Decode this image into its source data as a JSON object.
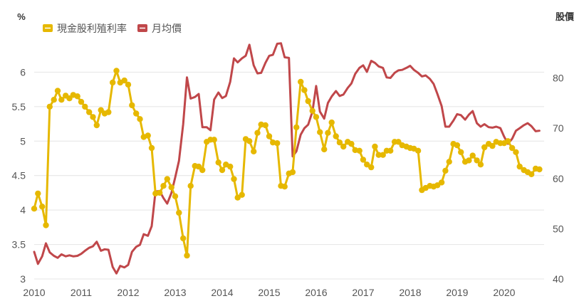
{
  "chart_data": {
    "type": "line",
    "left_axis": {
      "label": "%",
      "ylim": [
        3,
        6.5
      ],
      "ticks": [
        "3",
        "3.5",
        "4",
        "4.5",
        "5",
        "5.5",
        "6"
      ]
    },
    "right_axis": {
      "label": "股價",
      "ylim": [
        40,
        88
      ],
      "ticks": [
        "40",
        "50",
        "60",
        "70",
        "80"
      ]
    },
    "x_axis": {
      "xlim": [
        2010,
        2020.85
      ],
      "ticks": [
        "2010",
        "2011",
        "2012",
        "2013",
        "2014",
        "2015",
        "2016",
        "2017",
        "2018",
        "2019",
        "2020"
      ]
    },
    "grid": true,
    "legend_position": "top-left",
    "series": [
      {
        "name": "現金股利殖利率",
        "axis": "left",
        "color": "#e6b800",
        "markers": true,
        "x": [
          2010.0,
          2010.08,
          2010.17,
          2010.25,
          2010.33,
          2010.42,
          2010.5,
          2010.58,
          2010.67,
          2010.75,
          2010.83,
          2010.92,
          2011.0,
          2011.08,
          2011.17,
          2011.25,
          2011.33,
          2011.42,
          2011.5,
          2011.58,
          2011.67,
          2011.75,
          2011.83,
          2011.92,
          2012.0,
          2012.08,
          2012.17,
          2012.25,
          2012.33,
          2012.42,
          2012.5,
          2012.58,
          2012.67,
          2012.75,
          2012.83,
          2012.92,
          2013.0,
          2013.08,
          2013.17,
          2013.25,
          2013.33,
          2013.42,
          2013.5,
          2013.58,
          2013.67,
          2013.75,
          2013.83,
          2013.92,
          2014.0,
          2014.08,
          2014.17,
          2014.25,
          2014.33,
          2014.42,
          2014.5,
          2014.58,
          2014.67,
          2014.75,
          2014.83,
          2014.92,
          2015.0,
          2015.08,
          2015.17,
          2015.25,
          2015.33,
          2015.42,
          2015.5,
          2015.58,
          2015.67,
          2015.75,
          2015.83,
          2015.92,
          2016.0,
          2016.08,
          2016.17,
          2016.25,
          2016.33,
          2016.42,
          2016.5,
          2016.58,
          2016.67,
          2016.75,
          2016.83,
          2016.92,
          2017.0,
          2017.08,
          2017.17,
          2017.25,
          2017.33,
          2017.42,
          2017.5,
          2017.58,
          2017.67,
          2017.75,
          2017.83,
          2017.92,
          2018.0,
          2018.08,
          2018.17,
          2018.25,
          2018.33,
          2018.42,
          2018.5,
          2018.58,
          2018.67,
          2018.75,
          2018.83,
          2018.92,
          2019.0,
          2019.08,
          2019.17,
          2019.25,
          2019.33,
          2019.42,
          2019.5,
          2019.58,
          2019.67,
          2019.75,
          2019.83,
          2019.92,
          2020.0,
          2020.08,
          2020.17,
          2020.25,
          2020.33,
          2020.42,
          2020.5,
          2020.58,
          2020.67,
          2020.75
        ],
        "values": [
          4.02,
          4.24,
          4.05,
          3.78,
          5.5,
          5.6,
          5.73,
          5.6,
          5.66,
          5.62,
          5.67,
          5.65,
          5.57,
          5.5,
          5.42,
          5.35,
          5.23,
          5.45,
          5.4,
          5.42,
          5.85,
          6.02,
          5.85,
          5.88,
          5.82,
          5.52,
          5.4,
          5.32,
          5.06,
          5.08,
          4.9,
          4.24,
          4.25,
          4.35,
          4.45,
          4.33,
          4.2,
          3.96,
          3.59,
          3.34,
          4.35,
          4.64,
          4.63,
          4.58,
          4.99,
          5.02,
          5.02,
          4.69,
          4.58,
          4.66,
          4.63,
          4.45,
          4.18,
          4.22,
          5.03,
          5.0,
          4.85,
          5.12,
          5.24,
          5.23,
          5.07,
          4.98,
          4.97,
          4.35,
          4.34,
          4.53,
          4.55,
          5.2,
          5.86,
          5.74,
          5.58,
          5.44,
          5.35,
          5.13,
          4.88,
          5.12,
          5.27,
          5.07,
          4.98,
          4.92,
          4.99,
          4.96,
          4.87,
          4.86,
          4.73,
          4.66,
          4.62,
          4.92,
          4.8,
          4.8,
          4.86,
          4.86,
          4.99,
          4.99,
          4.94,
          4.92,
          4.9,
          4.89,
          4.86,
          4.29,
          4.32,
          4.35,
          4.34,
          4.36,
          4.4,
          4.57,
          4.7,
          4.96,
          4.94,
          4.84,
          4.7,
          4.72,
          4.79,
          4.72,
          4.66,
          4.91,
          4.96,
          4.93,
          4.99,
          4.97,
          4.97,
          5.0,
          4.9,
          4.84,
          4.63,
          4.58,
          4.55,
          4.52,
          4.6,
          4.59
        ]
      },
      {
        "name": "月均價",
        "axis": "right",
        "color": "#c0474a",
        "markers": false,
        "x": [
          2010.0,
          2010.08,
          2010.17,
          2010.25,
          2010.33,
          2010.42,
          2010.5,
          2010.58,
          2010.67,
          2010.75,
          2010.83,
          2010.92,
          2011.0,
          2011.08,
          2011.17,
          2011.25,
          2011.33,
          2011.42,
          2011.5,
          2011.58,
          2011.67,
          2011.75,
          2011.83,
          2011.92,
          2012.0,
          2012.08,
          2012.17,
          2012.25,
          2012.33,
          2012.42,
          2012.5,
          2012.58,
          2012.67,
          2012.75,
          2012.83,
          2012.92,
          2013.0,
          2013.08,
          2013.17,
          2013.25,
          2013.33,
          2013.42,
          2013.5,
          2013.58,
          2013.67,
          2013.75,
          2013.83,
          2013.92,
          2014.0,
          2014.08,
          2014.17,
          2014.25,
          2014.33,
          2014.42,
          2014.5,
          2014.58,
          2014.67,
          2014.75,
          2014.83,
          2014.92,
          2015.0,
          2015.08,
          2015.17,
          2015.25,
          2015.33,
          2015.42,
          2015.5,
          2015.58,
          2015.67,
          2015.75,
          2015.83,
          2015.92,
          2016.0,
          2016.08,
          2016.17,
          2016.25,
          2016.33,
          2016.42,
          2016.5,
          2016.58,
          2016.67,
          2016.75,
          2016.83,
          2016.92,
          2017.0,
          2017.08,
          2017.17,
          2017.25,
          2017.33,
          2017.42,
          2017.5,
          2017.58,
          2017.67,
          2017.75,
          2017.83,
          2017.92,
          2018.0,
          2018.08,
          2018.17,
          2018.25,
          2018.33,
          2018.42,
          2018.5,
          2018.58,
          2018.67,
          2018.75,
          2018.83,
          2018.92,
          2019.0,
          2019.08,
          2019.17,
          2019.25,
          2019.33,
          2019.42,
          2019.5,
          2019.58,
          2019.67,
          2019.75,
          2019.83,
          2019.92,
          2020.0,
          2020.08,
          2020.17,
          2020.25,
          2020.33,
          2020.42,
          2020.5,
          2020.58,
          2020.67,
          2020.75
        ],
        "values": [
          45.4,
          43.0,
          44.5,
          47.1,
          45.3,
          44.6,
          44.2,
          44.9,
          44.5,
          44.7,
          44.5,
          44.6,
          45.0,
          45.6,
          46.2,
          46.5,
          47.4,
          45.6,
          45.9,
          45.8,
          42.4,
          41.1,
          42.6,
          42.3,
          42.8,
          45.4,
          46.4,
          46.8,
          48.9,
          48.6,
          50.5,
          57.4,
          57.5,
          56.1,
          55.0,
          57.1,
          60.2,
          63.5,
          70.8,
          80.1,
          75.9,
          76.2,
          76.8,
          70.2,
          70.2,
          69.6,
          75.7,
          77.1,
          76.0,
          76.4,
          79.2,
          83.9,
          83.1,
          83.9,
          84.4,
          86.6,
          82.5,
          80.9,
          81.0,
          83.0,
          84.4,
          84.6,
          86.8,
          86.9,
          84.1,
          84.0,
          64.4,
          65.4,
          68.7,
          70.0,
          70.7,
          73.3,
          78.4,
          73.3,
          71.9,
          75.0,
          76.3,
          77.4,
          76.4,
          76.7,
          78.0,
          78.9,
          80.8,
          82.0,
          82.5,
          81.2,
          83.4,
          83.0,
          82.3,
          82.0,
          80.1,
          80.0,
          81.0,
          81.5,
          81.6,
          82.0,
          82.4,
          81.6,
          81.0,
          80.3,
          80.5,
          79.8,
          78.8,
          76.8,
          74.4,
          70.3,
          70.3,
          71.5,
          72.8,
          72.6,
          71.7,
          72.7,
          73.4,
          71.0,
          70.3,
          70.8,
          70.2,
          70.1,
          70.3,
          70.0,
          68.3,
          66.9,
          67.9,
          69.5,
          70.0,
          70.6,
          71.0,
          70.4,
          69.4,
          69.5
        ]
      }
    ]
  }
}
